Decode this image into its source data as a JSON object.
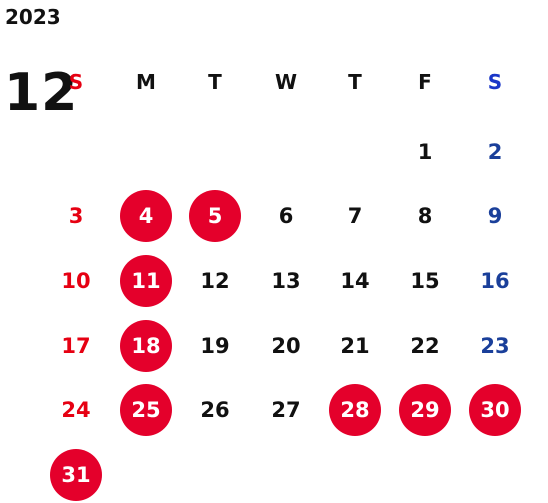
{
  "calendar": {
    "year": "2023",
    "month": "12",
    "weekdays": [
      "S",
      "M",
      "T",
      "W",
      "T",
      "F",
      "S"
    ],
    "colors": {
      "sunday": "#e60012",
      "saturday": "#1a3f9a",
      "saturday_header": "#1a36c8",
      "weekday": "#111111",
      "holiday_circle": "#e4002b",
      "holiday_text": "#ffffff"
    },
    "weeks": [
      [
        "",
        "",
        "",
        "",
        "",
        "1",
        "2"
      ],
      [
        "3",
        "4",
        "5",
        "6",
        "7",
        "8",
        "9"
      ],
      [
        "10",
        "11",
        "12",
        "13",
        "14",
        "15",
        "16"
      ],
      [
        "17",
        "18",
        "19",
        "20",
        "21",
        "22",
        "23"
      ],
      [
        "24",
        "25",
        "26",
        "27",
        "28",
        "29",
        "30"
      ],
      [
        "31",
        "",
        "",
        "",
        "",
        "",
        ""
      ]
    ],
    "highlighted_days": [
      "4",
      "5",
      "11",
      "18",
      "25",
      "28",
      "29",
      "30",
      "31"
    ]
  }
}
